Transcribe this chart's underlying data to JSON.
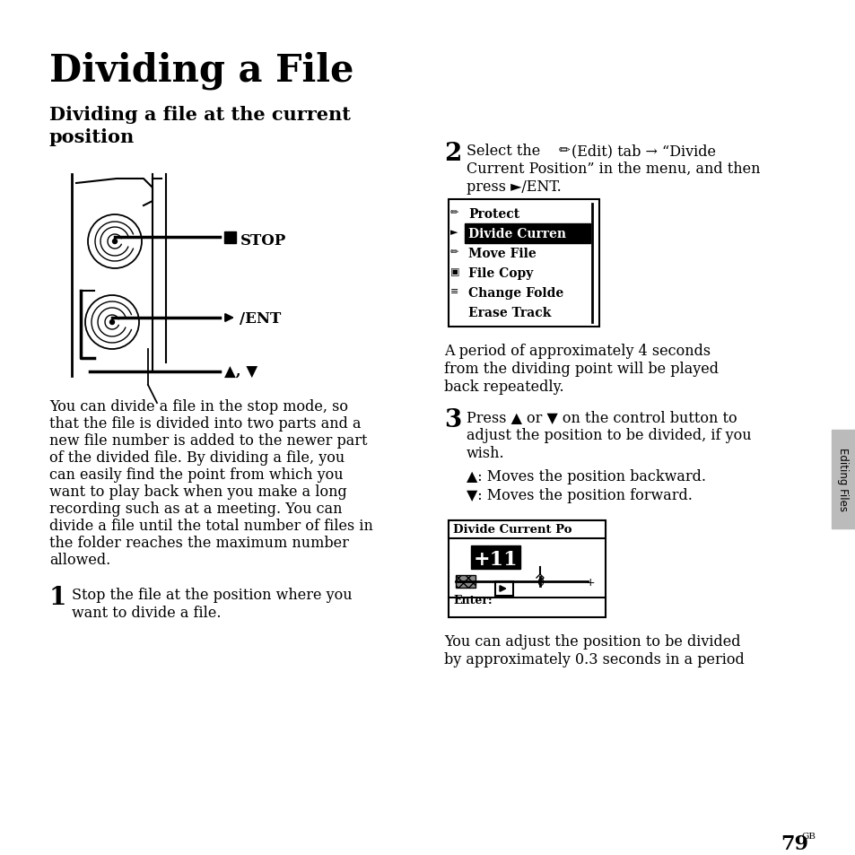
{
  "title": "Dividing a File",
  "subtitle_line1": "Dividing a file at the current",
  "subtitle_line2": "position",
  "bg_color": "#ffffff",
  "text_color": "#000000",
  "body_text_left": [
    "You can divide a file in the stop mode, so",
    "that the file is divided into two parts and a",
    "new file number is added to the newer part",
    "of the divided file. By dividing a file, you",
    "can easily find the point from which you",
    "want to play back when you make a long",
    "recording such as at a meeting. You can",
    "divide a file until the total number of files in",
    "the folder reaches the maximum number",
    "allowed."
  ],
  "step2_menu": [
    "Protect",
    "Divide Curren",
    "Move File",
    "File Copy",
    "Change Folde",
    "Erase Track"
  ],
  "step3_bullets": [
    "▲: Moves the position backward.",
    "▼: Moves the position forward."
  ],
  "bottom_text_line1": "You can adjust the position to be divided",
  "bottom_text_line2": "by approximately 0.3 seconds in a period",
  "page_number": "79",
  "sidebar_text": "Editing Files"
}
